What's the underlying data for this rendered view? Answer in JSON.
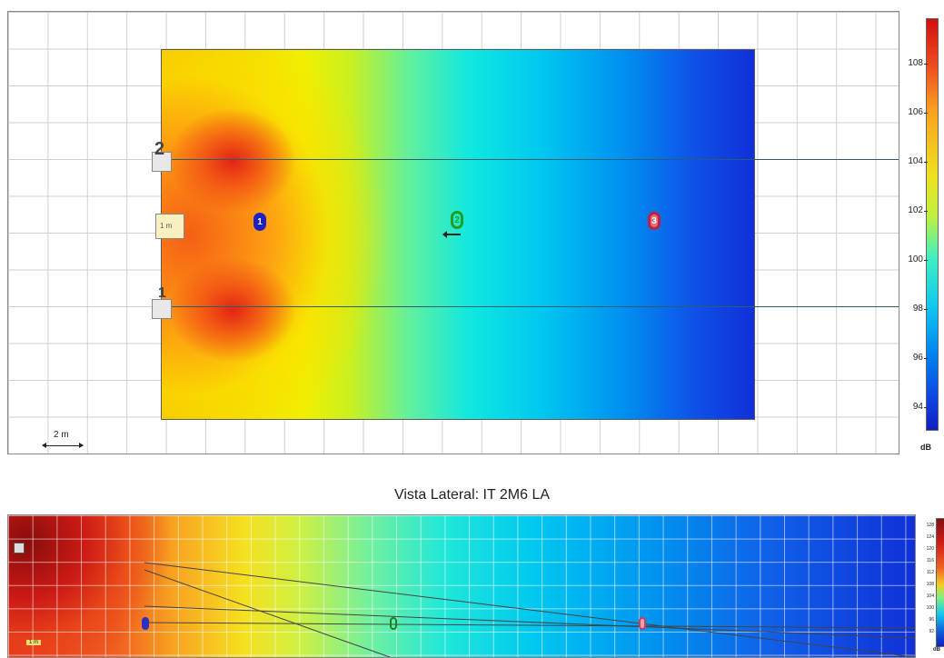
{
  "top_view": {
    "scale_label": "2 m",
    "source_labels": [
      "2",
      "1"
    ],
    "center_source_label": "1 m",
    "microphones": [
      {
        "label": "1",
        "color": "#2020c0"
      },
      {
        "label": "2",
        "color": "#20a020"
      },
      {
        "label": "3",
        "color": "#c02040"
      }
    ],
    "colorbar": {
      "ticks": [
        "108",
        "106",
        "104",
        "102",
        "100",
        "98",
        "96",
        "94"
      ],
      "unit": "dB"
    }
  },
  "side_view": {
    "title": "Vista Lateral: IT 2M6 LA",
    "scale_label": "1 m",
    "colorbar": {
      "ticks": [
        "128",
        "124",
        "120",
        "116",
        "112",
        "108",
        "104",
        "100",
        "96",
        "92"
      ],
      "unit": "dB"
    }
  },
  "colors": {
    "hot": "#d01010",
    "mid": "#f0e020",
    "cool": "#10c8f0",
    "cold": "#1030d8"
  }
}
